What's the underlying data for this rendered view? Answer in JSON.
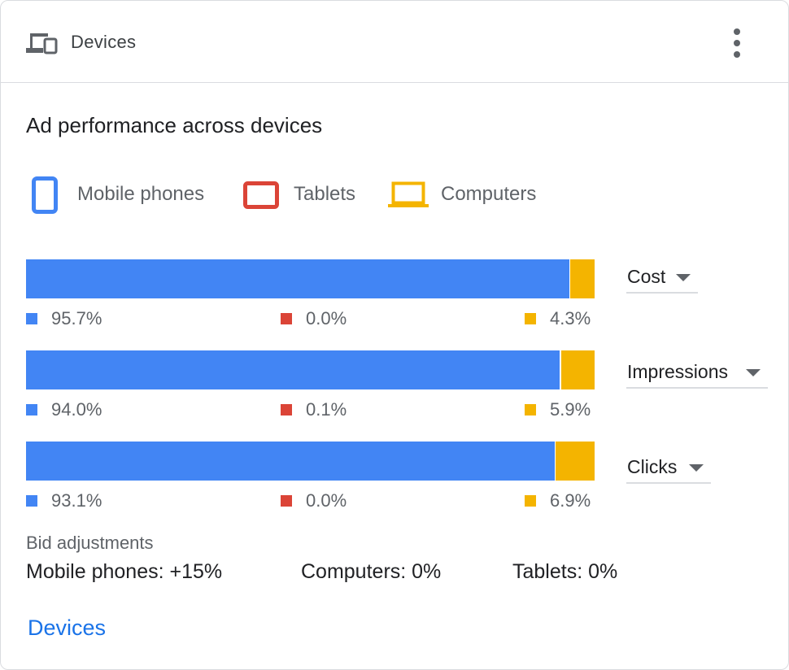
{
  "header": {
    "title": "Devices",
    "icon": "devices-icon",
    "menu_icon": "more-vert-icon"
  },
  "section_title": "Ad performance across devices",
  "legend": [
    {
      "label": "Mobile phones",
      "icon": "smartphone-icon",
      "color": "#4285f4"
    },
    {
      "label": "Tablets",
      "icon": "tablet-icon",
      "color": "#db4437"
    },
    {
      "label": "Computers",
      "icon": "laptop-icon",
      "color": "#f4b400"
    }
  ],
  "colors": {
    "mobile": "#4285f4",
    "tablet": "#db4437",
    "computer": "#f4b400"
  },
  "chart_data": {
    "type": "bar",
    "stacked": true,
    "normalized": true,
    "categories": [
      "Cost",
      "Impressions",
      "Clicks"
    ],
    "series": [
      {
        "name": "Mobile phones",
        "values": [
          95.7,
          94.0,
          93.1
        ]
      },
      {
        "name": "Tablets",
        "values": [
          0.0,
          0.1,
          0.0
        ]
      },
      {
        "name": "Computers",
        "values": [
          4.3,
          5.9,
          6.9
        ]
      }
    ]
  },
  "rows": [
    {
      "metric": "Cost",
      "mobile": "95.7%",
      "tablet": "0.0%",
      "computer": "4.3%"
    },
    {
      "metric": "Impressions",
      "mobile": "94.0%",
      "tablet": "0.1%",
      "computer": "5.9%"
    },
    {
      "metric": "Clicks",
      "mobile": "93.1%",
      "tablet": "0.0%",
      "computer": "6.9%"
    }
  ],
  "bid_adjustments": {
    "title": "Bid adjustments",
    "mobile": "Mobile phones: +15%",
    "computers": "Computers: 0%",
    "tablets": "Tablets: 0%"
  },
  "link": "Devices"
}
